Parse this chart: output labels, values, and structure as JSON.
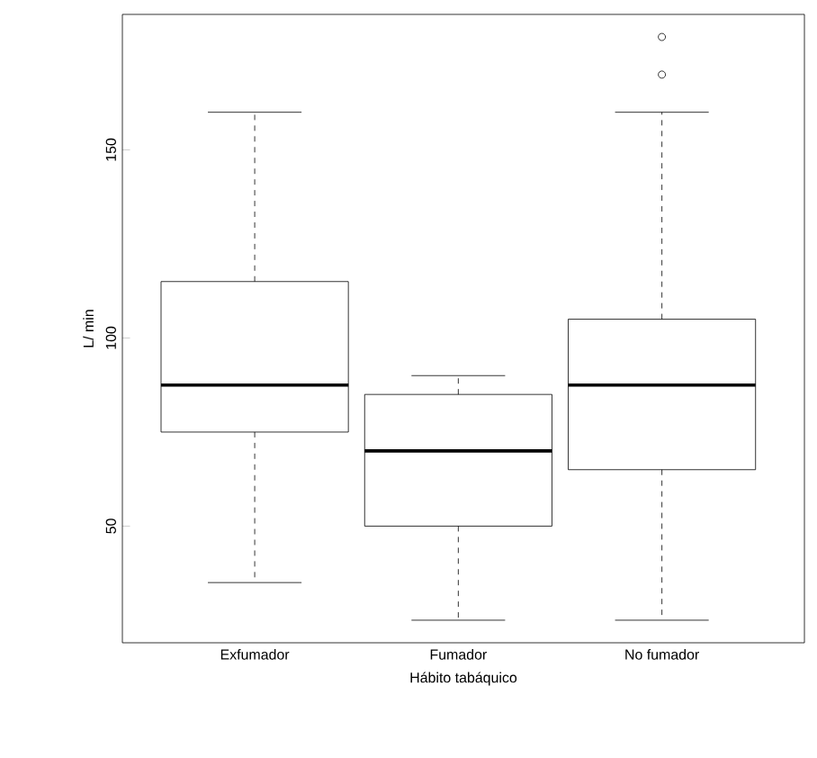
{
  "chart_data": {
    "type": "box",
    "xlabel": "Hábito tabáquico",
    "ylabel": "L/ min",
    "categories": [
      "Exfumador",
      "Fumador",
      "No fumador"
    ],
    "boxes": [
      {
        "low": 35,
        "q1": 75,
        "median": 87.5,
        "q3": 115,
        "high": 160
      },
      {
        "low": 25,
        "q1": 50,
        "median": 70,
        "q3": 85,
        "high": 90
      },
      {
        "low": 25,
        "q1": 65,
        "median": 87.5,
        "q3": 105,
        "high": 160,
        "outliers": [
          170,
          180
        ]
      }
    ],
    "ylim": [
      19,
      186
    ],
    "yticks": [
      50,
      100,
      150
    ],
    "grid": false
  }
}
